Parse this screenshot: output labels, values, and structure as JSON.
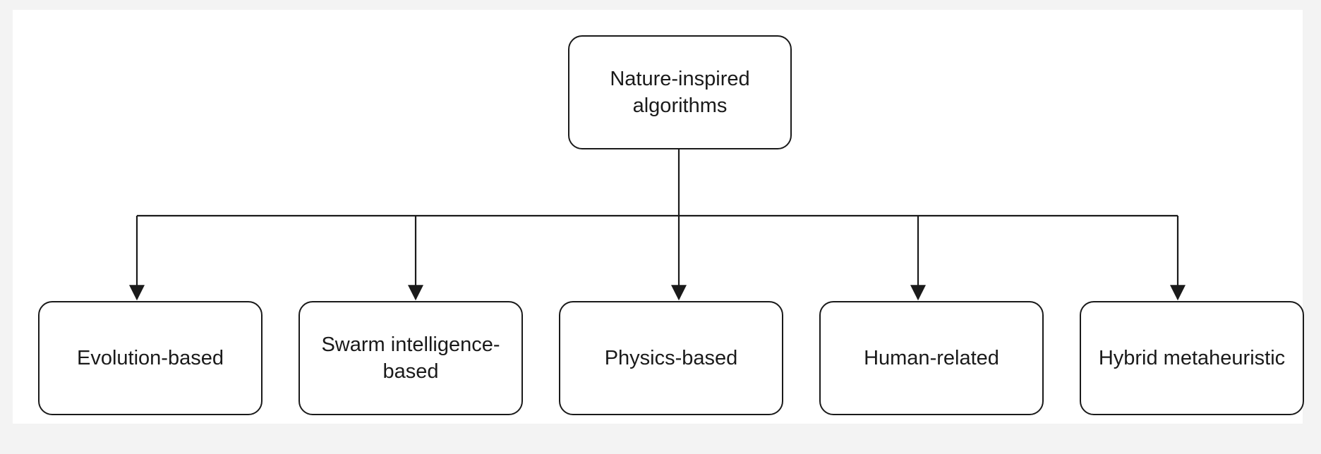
{
  "diagram": {
    "root": {
      "label": "Nature-inspired algorithms"
    },
    "children": [
      {
        "label": "Evolution-based"
      },
      {
        "label": "Swarm intelligence-based"
      },
      {
        "label": "Physics-based"
      },
      {
        "label": "Human-related"
      },
      {
        "label": "Hybrid metaheuristic"
      }
    ],
    "colors": {
      "stroke": "#1a1a1a",
      "background": "#f3f3f3",
      "canvas": "#ffffff"
    }
  }
}
